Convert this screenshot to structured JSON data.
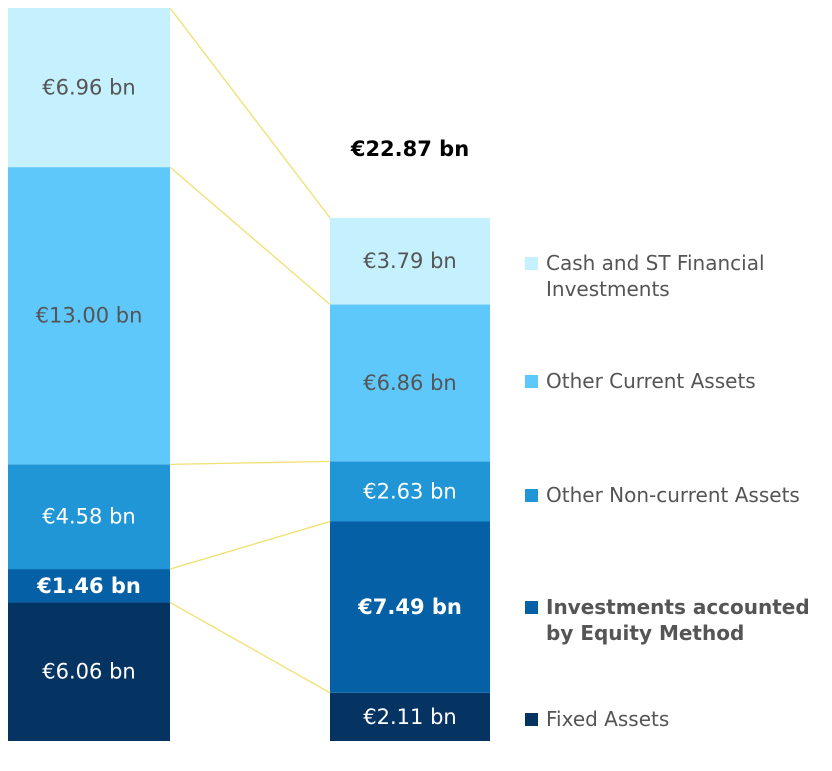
{
  "chart_data": {
    "type": "stacked_bar",
    "categories": [
      null,
      null
    ],
    "series": [
      {
        "name": "Fixed Assets",
        "color": "#063462",
        "label_color": "#ffffff",
        "bold": false,
        "values": [
          6.06,
          2.11
        ],
        "value_labels": [
          "€6.06 bn",
          "€2.11 bn"
        ]
      },
      {
        "name": "Investments accounted by Equity Method",
        "color": "#0560a6",
        "label_color": "#ffffff",
        "bold": true,
        "values": [
          1.46,
          7.49
        ],
        "value_labels": [
          "€1.46 bn",
          "€7.49 bn"
        ]
      },
      {
        "name": "Other Non-current Assets",
        "color": "#2196d6",
        "label_color": "#ffffff",
        "bold": false,
        "values": [
          4.58,
          2.63
        ],
        "value_labels": [
          "€4.58 bn",
          "€2.63 bn"
        ]
      },
      {
        "name": "Other Current Assets",
        "color": "#5ec8fb",
        "label_color": "#555555",
        "bold": false,
        "values": [
          13.0,
          6.86
        ],
        "value_labels": [
          "€13.00 bn",
          "€6.86 bn"
        ]
      },
      {
        "name": "Cash and ST Financial Investments",
        "color": "#c5f0fd",
        "label_color": "#555555",
        "bold": false,
        "values": [
          6.96,
          3.79
        ],
        "value_labels": [
          "€6.96 bn",
          "€3.79 bn"
        ]
      }
    ],
    "annotations": [
      {
        "text": "€22.87 bn",
        "category": 1
      }
    ],
    "connector_color": "#f0e070"
  }
}
